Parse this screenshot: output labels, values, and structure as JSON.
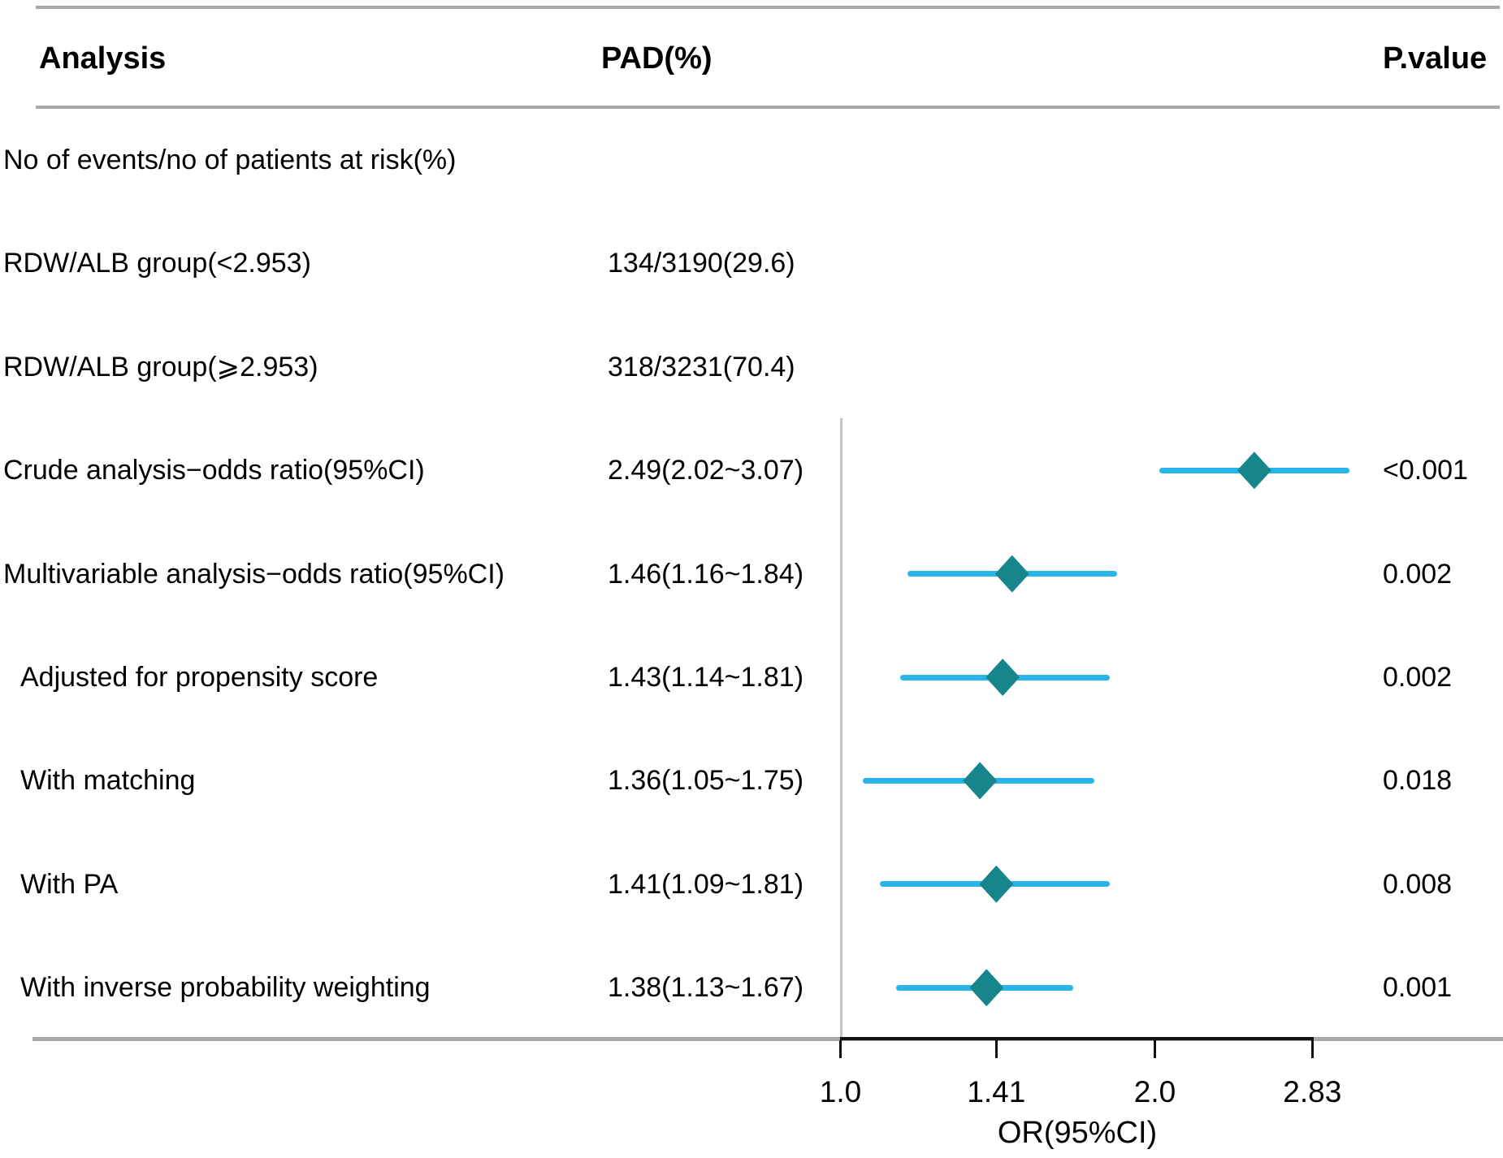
{
  "chart_data": {
    "type": "forest",
    "columns": [
      "Analysis",
      "PAD(%)",
      "P.value"
    ],
    "xlabel": "OR(95%CI)",
    "x_scale": "log2",
    "x_ticks": [
      1.0,
      1.41,
      2.0,
      2.83
    ],
    "x_tick_labels": [
      "1.0",
      "1.41",
      "2.0",
      "2.83"
    ],
    "x_range": [
      1.0,
      2.83
    ],
    "reference_line": 1.0,
    "grid": "off",
    "rows": [
      {
        "label": "No of events/no of patients at risk(%)",
        "pad": "",
        "p": "",
        "indent": false
      },
      {
        "label": "RDW/ALB group(<2.953)",
        "pad": "134/3190(29.6)",
        "p": "",
        "indent": false
      },
      {
        "label": "RDW/ALB group(⩾2.953)",
        "pad": "318/3231(70.4)",
        "p": "",
        "indent": false
      },
      {
        "label": "Crude analysis−odds ratio(95%CI)",
        "pad": "2.49(2.02~3.07)",
        "p": "<0.001",
        "indent": false,
        "or": 2.49,
        "lo": 2.02,
        "hi": 3.07
      },
      {
        "label": "Multivariable analysis−odds ratio(95%CI)",
        "pad": "1.46(1.16~1.84)",
        "p": "0.002",
        "indent": false,
        "or": 1.46,
        "lo": 1.16,
        "hi": 1.84
      },
      {
        "label": "Adjusted for propensity score",
        "pad": "1.43(1.14~1.81)",
        "p": "0.002",
        "indent": true,
        "or": 1.43,
        "lo": 1.14,
        "hi": 1.81
      },
      {
        "label": "With matching",
        "pad": "1.36(1.05~1.75)",
        "p": "0.018",
        "indent": true,
        "or": 1.36,
        "lo": 1.05,
        "hi": 1.75
      },
      {
        "label": "With PA",
        "pad": "1.41(1.09~1.81)",
        "p": "0.008",
        "indent": true,
        "or": 1.41,
        "lo": 1.09,
        "hi": 1.81
      },
      {
        "label": "With inverse probability weighting",
        "pad": "1.38(1.13~1.67)",
        "p": "0.001",
        "indent": true,
        "or": 1.38,
        "lo": 1.13,
        "hi": 1.67
      }
    ],
    "colors": {
      "ci_line": "#29b5e9",
      "diamond": "#17868c",
      "rule": "#a9a9a9",
      "reference_line": "#c4c4c4",
      "axis": "#111111",
      "text": "#000000"
    }
  }
}
